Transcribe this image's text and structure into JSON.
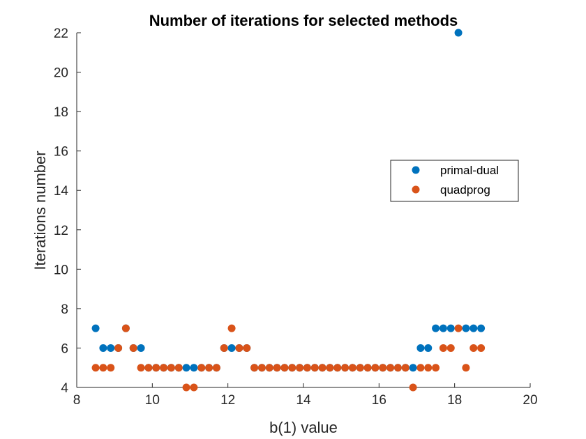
{
  "chart_data": {
    "type": "scatter",
    "title": "Number of iterations for selected methods",
    "xlabel": "b(1) value",
    "ylabel": "Iterations number",
    "xlim": [
      8,
      20
    ],
    "ylim": [
      4,
      22
    ],
    "xticks": [
      8,
      10,
      12,
      14,
      16,
      18,
      20
    ],
    "yticks": [
      4,
      6,
      8,
      10,
      12,
      14,
      16,
      18,
      20,
      22
    ],
    "grid": false,
    "legend_position": "right",
    "series": [
      {
        "name": "primal-dual",
        "color": "#0072BD",
        "x": [
          8.5,
          8.7,
          8.9,
          9.1,
          9.3,
          9.5,
          9.7,
          9.9,
          10.1,
          10.3,
          10.5,
          10.7,
          10.9,
          11.1,
          11.3,
          11.5,
          11.7,
          11.9,
          12.1,
          12.3,
          12.5,
          12.7,
          12.9,
          13.1,
          13.3,
          13.5,
          13.7,
          13.9,
          14.1,
          14.3,
          14.5,
          14.7,
          14.9,
          15.1,
          15.3,
          15.5,
          15.7,
          15.9,
          16.1,
          16.3,
          16.5,
          16.7,
          16.9,
          17.1,
          17.3,
          17.5,
          17.7,
          17.9,
          18.1,
          18.3,
          18.5,
          18.7
        ],
        "y": [
          7,
          6,
          6,
          6,
          7,
          6,
          6,
          5,
          5,
          5,
          5,
          5,
          5,
          5,
          5,
          5,
          5,
          6,
          6,
          6,
          6,
          5,
          5,
          5,
          5,
          5,
          5,
          5,
          5,
          5,
          5,
          5,
          5,
          5,
          5,
          5,
          5,
          5,
          5,
          5,
          5,
          5,
          5,
          6,
          6,
          7,
          7,
          7,
          22,
          7,
          7,
          7
        ]
      },
      {
        "name": "quadprog",
        "color": "#D95319",
        "x": [
          8.5,
          8.7,
          8.9,
          9.1,
          9.3,
          9.5,
          9.7,
          9.9,
          10.1,
          10.3,
          10.5,
          10.7,
          10.9,
          11.1,
          11.3,
          11.5,
          11.7,
          11.9,
          12.1,
          12.3,
          12.5,
          12.7,
          12.9,
          13.1,
          13.3,
          13.5,
          13.7,
          13.9,
          14.1,
          14.3,
          14.5,
          14.7,
          14.9,
          15.1,
          15.3,
          15.5,
          15.7,
          15.9,
          16.1,
          16.3,
          16.5,
          16.7,
          16.9,
          17.1,
          17.3,
          17.5,
          17.7,
          17.9,
          18.1,
          18.3,
          18.5,
          18.7
        ],
        "y": [
          5,
          5,
          5,
          6,
          7,
          6,
          5,
          5,
          5,
          5,
          5,
          5,
          4,
          4,
          5,
          5,
          5,
          6,
          7,
          6,
          6,
          5,
          5,
          5,
          5,
          5,
          5,
          5,
          5,
          5,
          5,
          5,
          5,
          5,
          5,
          5,
          5,
          5,
          5,
          5,
          5,
          5,
          4,
          5,
          5,
          5,
          6,
          6,
          7,
          5,
          6,
          6
        ]
      }
    ]
  }
}
